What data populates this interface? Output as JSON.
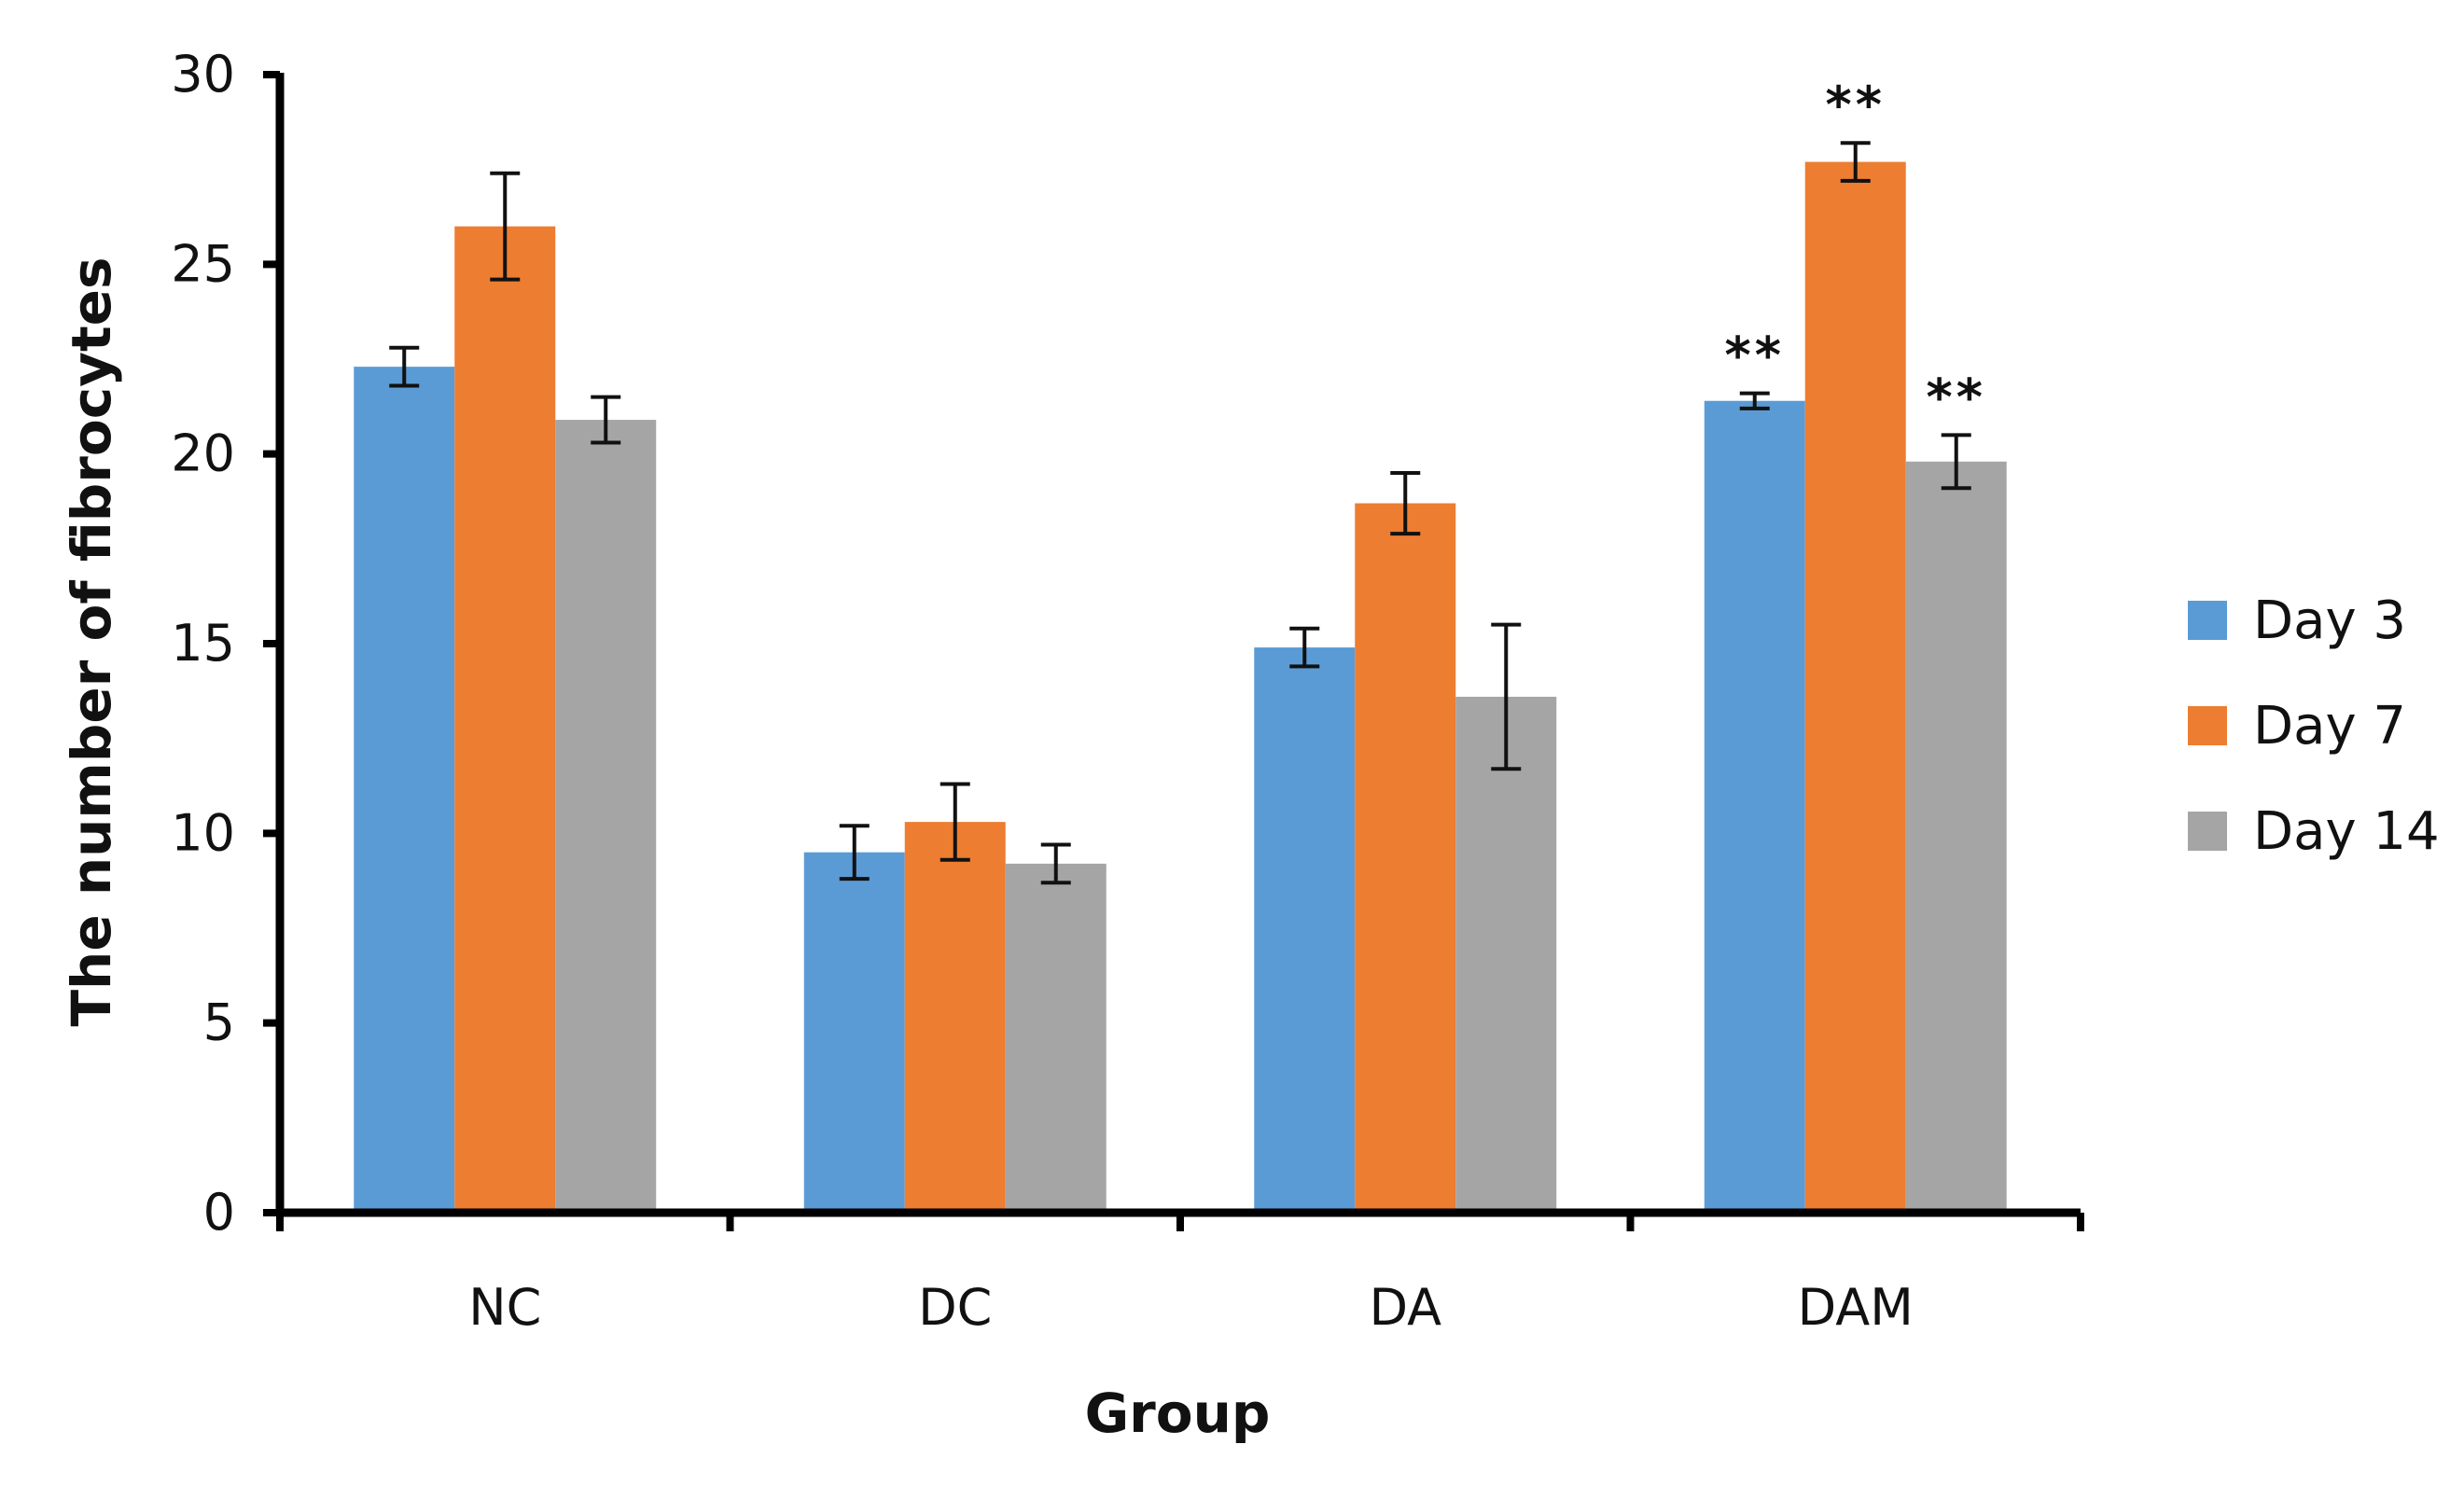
{
  "chart_data": {
    "type": "bar",
    "title": "",
    "xlabel": "Group",
    "ylabel": "The number of fibrocytes",
    "ylim": [
      0,
      30
    ],
    "yticks": [
      0,
      5,
      10,
      15,
      20,
      25,
      30
    ],
    "categories": [
      "NC",
      "DC",
      "DA",
      "DAM"
    ],
    "legend_position": "right",
    "series": [
      {
        "name": "Day 3",
        "color": "#5B9BD5",
        "values": [
          22.3,
          9.5,
          14.9,
          21.4
        ],
        "errors": [
          0.5,
          0.7,
          0.5,
          0.2
        ],
        "annotations": [
          "",
          "",
          "",
          "**"
        ]
      },
      {
        "name": "Day 7",
        "color": "#ED7D31",
        "values": [
          26.0,
          10.3,
          18.7,
          27.7
        ],
        "errors": [
          1.4,
          1.0,
          0.8,
          0.5
        ],
        "annotations": [
          "",
          "",
          "",
          "**"
        ]
      },
      {
        "name": "Day 14",
        "color": "#A5A5A5",
        "values": [
          20.9,
          9.2,
          13.6,
          19.8
        ],
        "errors": [
          0.6,
          0.5,
          1.9,
          0.7
        ],
        "annotations": [
          "",
          "",
          "",
          "**"
        ]
      }
    ]
  }
}
